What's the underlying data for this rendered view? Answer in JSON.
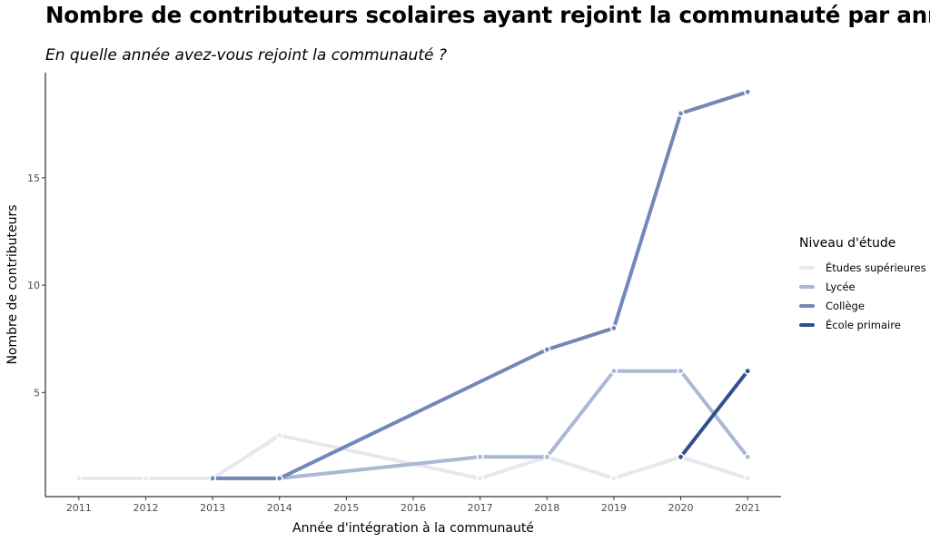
{
  "chart_data": {
    "type": "line",
    "title": "Nombre de contributeurs scolaires ayant rejoint la communauté par année",
    "subtitle": "En quelle année avez-vous rejoint la communauté ?",
    "xlabel": "Année d'intégration à la communauté",
    "ylabel": "Nombre de contributeurs",
    "x_ticks": [
      2011,
      2012,
      2013,
      2014,
      2015,
      2016,
      2017,
      2018,
      2019,
      2020,
      2021
    ],
    "y_ticks": [
      5,
      10,
      15
    ],
    "xlim": [
      2010.5,
      2021.5
    ],
    "ylim": [
      0.15,
      19.9
    ],
    "grid": false,
    "legend": {
      "title": "Niveau d'étude",
      "placement": "right"
    },
    "series": [
      {
        "name": "Études supérieures",
        "color": "#e6e8f0",
        "x": [
          2011,
          2012,
          2013,
          2014,
          2017,
          2018,
          2019,
          2020,
          2021
        ],
        "y": [
          1,
          1,
          1,
          3,
          1,
          2,
          1,
          2,
          1
        ]
      },
      {
        "name": "Lycée",
        "color": "#aab8d3",
        "x": [
          2013,
          2014,
          2017,
          2018,
          2019,
          2020,
          2021
        ],
        "y": [
          1,
          1,
          2,
          2,
          6,
          6,
          2
        ]
      },
      {
        "name": "Collège",
        "color": "#7188b8",
        "x": [
          2013,
          2014,
          2018,
          2019,
          2020,
          2021
        ],
        "y": [
          1,
          1,
          7,
          8,
          18,
          19
        ]
      },
      {
        "name": "École primaire",
        "color": "#334f8f",
        "x": [
          2020,
          2021
        ],
        "y": [
          2,
          6
        ]
      }
    ]
  }
}
